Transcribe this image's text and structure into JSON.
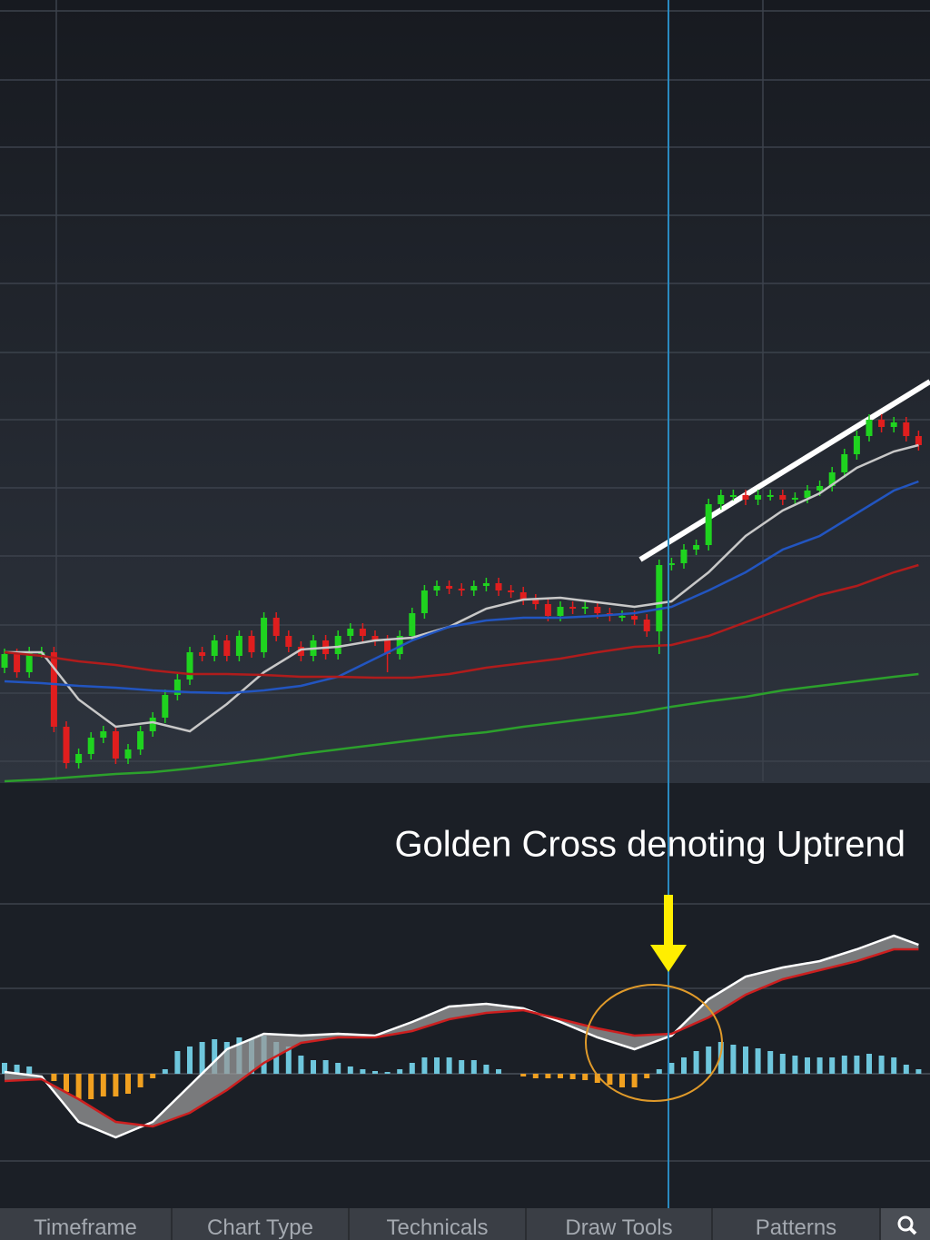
{
  "chart_data": [
    {
      "type": "candlestick",
      "ylim": [
        0,
        860
      ],
      "up_color": "#1fd31f",
      "down_color": "#e01e1e",
      "open": [
        125,
        140,
        120,
        142,
        142,
        60,
        20,
        30,
        48,
        55,
        25,
        35,
        55,
        70,
        95,
        112,
        142,
        138,
        155,
        138,
        160,
        142,
        180,
        160,
        148,
        138,
        155,
        140,
        160,
        168,
        160,
        155,
        140,
        160,
        185,
        210,
        215,
        212,
        210,
        215,
        218,
        210,
        208,
        200,
        195,
        182,
        192,
        190,
        192,
        185,
        182,
        182,
        178,
        165,
        238,
        240,
        255,
        260,
        305,
        315,
        315,
        310,
        315,
        315,
        310,
        312,
        320,
        325,
        340,
        360,
        380,
        398,
        390,
        395,
        380
      ],
      "high": [
        146,
        146,
        148,
        148,
        148,
        66,
        36,
        54,
        61,
        61,
        41,
        61,
        76,
        101,
        118,
        148,
        148,
        161,
        161,
        166,
        166,
        186,
        186,
        166,
        154,
        161,
        161,
        166,
        174,
        174,
        166,
        161,
        166,
        191,
        216,
        221,
        221,
        218,
        221,
        224,
        224,
        216,
        214,
        206,
        201,
        198,
        198,
        198,
        198,
        191,
        188,
        188,
        184,
        244,
        246,
        261,
        266,
        311,
        321,
        321,
        321,
        321,
        321,
        321,
        318,
        326,
        331,
        346,
        366,
        386,
        404,
        404,
        401,
        401,
        386
      ],
      "low": [
        119,
        114,
        114,
        136,
        54,
        14,
        14,
        24,
        42,
        19,
        19,
        29,
        49,
        64,
        89,
        106,
        132,
        132,
        132,
        132,
        136,
        136,
        154,
        142,
        132,
        132,
        134,
        134,
        154,
        154,
        149,
        120,
        134,
        154,
        179,
        204,
        206,
        204,
        204,
        209,
        204,
        202,
        194,
        189,
        176,
        176,
        184,
        184,
        179,
        176,
        176,
        172,
        159,
        140,
        232,
        234,
        249,
        254,
        299,
        309,
        304,
        304,
        309,
        304,
        304,
        306,
        314,
        319,
        334,
        354,
        374,
        384,
        384,
        374,
        364
      ],
      "close": [
        140,
        120,
        142,
        142,
        60,
        20,
        30,
        48,
        55,
        25,
        35,
        55,
        70,
        95,
        112,
        142,
        138,
        155,
        138,
        160,
        142,
        180,
        160,
        148,
        138,
        155,
        140,
        160,
        168,
        160,
        155,
        140,
        160,
        185,
        210,
        215,
        212,
        210,
        215,
        218,
        210,
        208,
        200,
        195,
        182,
        192,
        190,
        192,
        185,
        182,
        182,
        178,
        165,
        238,
        240,
        255,
        260,
        305,
        315,
        315,
        310,
        315,
        315,
        310,
        312,
        320,
        325,
        340,
        360,
        380,
        398,
        390,
        395,
        380,
        370
      ],
      "series": [
        {
          "color": "#c8c8c8",
          "x": [
            0,
            3,
            6,
            9,
            12,
            15,
            18,
            21,
            24,
            27,
            30,
            33,
            36,
            39,
            42,
            45,
            48,
            51,
            54,
            57,
            60,
            63,
            66,
            69,
            72,
            74
          ],
          "values": [
            142,
            142,
            90,
            60,
            65,
            55,
            85,
            120,
            145,
            148,
            155,
            158,
            170,
            190,
            200,
            202,
            197,
            192,
            198,
            230,
            270,
            298,
            317,
            345,
            363,
            370
          ]
        },
        {
          "color": "#2255c0",
          "x": [
            0,
            3,
            6,
            9,
            12,
            15,
            18,
            21,
            24,
            27,
            30,
            33,
            36,
            39,
            42,
            45,
            48,
            51,
            54,
            57,
            60,
            63,
            66,
            69,
            72,
            74
          ],
          "values": [
            110,
            108,
            105,
            103,
            100,
            98,
            97,
            100,
            105,
            115,
            135,
            155,
            170,
            177,
            180,
            180,
            182,
            185,
            192,
            210,
            230,
            255,
            270,
            295,
            320,
            330
          ]
        },
        {
          "color": "#b01c1c",
          "x": [
            0,
            3,
            6,
            9,
            12,
            15,
            18,
            21,
            24,
            27,
            30,
            33,
            36,
            39,
            42,
            45,
            48,
            51,
            54,
            57,
            60,
            63,
            66,
            69,
            72,
            74
          ],
          "values": [
            142,
            138,
            132,
            128,
            122,
            118,
            118,
            117,
            115,
            115,
            114,
            114,
            118,
            125,
            130,
            135,
            142,
            148,
            150,
            160,
            175,
            190,
            205,
            215,
            230,
            238
          ]
        },
        {
          "color": "#2ca02c",
          "x": [
            0,
            3,
            6,
            9,
            12,
            15,
            18,
            21,
            24,
            27,
            30,
            33,
            36,
            39,
            42,
            45,
            48,
            51,
            54,
            57,
            60,
            63,
            66,
            69,
            72,
            74
          ],
          "values": [
            0,
            2,
            5,
            8,
            10,
            14,
            19,
            24,
            30,
            35,
            40,
            45,
            50,
            54,
            60,
            65,
            70,
            75,
            82,
            88,
            93,
            100,
            105,
            110,
            115,
            118
          ]
        }
      ]
    },
    {
      "type": "macd",
      "ylim": [
        -148,
        302
      ],
      "annotation": "Golden Cross denoting Uptrend",
      "pos_color": "#6ec6dc",
      "neg_color": "#f0a020",
      "histogram": [
        12,
        10,
        8,
        0,
        -8,
        -20,
        -28,
        -28,
        -25,
        -25,
        -22,
        -15,
        -5,
        5,
        25,
        30,
        35,
        38,
        35,
        40,
        38,
        42,
        35,
        30,
        20,
        15,
        15,
        12,
        8,
        5,
        3,
        2,
        5,
        12,
        18,
        18,
        18,
        15,
        15,
        10,
        5,
        0,
        -3,
        -5,
        -5,
        -5,
        -6,
        -7,
        -10,
        -12,
        -15,
        -15,
        -5,
        5,
        12,
        18,
        25,
        30,
        35,
        32,
        30,
        28,
        25,
        22,
        20,
        18,
        18,
        18,
        20,
        20,
        22,
        20,
        18,
        10,
        5
      ],
      "series": [
        {
          "color": "#ffffff",
          "x": [
            0,
            3,
            6,
            9,
            12,
            15,
            18,
            21,
            24,
            27,
            30,
            33,
            36,
            39,
            42,
            45,
            48,
            51,
            54,
            57,
            60,
            63,
            66,
            69,
            72,
            74
          ],
          "values": [
            2,
            -3,
            -53,
            -70,
            -53,
            -13,
            27,
            44,
            42,
            44,
            42,
            57,
            74,
            77,
            72,
            57,
            40,
            27,
            42,
            82,
            107,
            117,
            124,
            137,
            152,
            142
          ]
        },
        {
          "color": "#cc1f1f",
          "x": [
            0,
            3,
            6,
            9,
            12,
            15,
            18,
            21,
            24,
            27,
            30,
            33,
            36,
            39,
            42,
            45,
            48,
            51,
            54,
            57,
            60,
            63,
            66,
            69,
            72,
            74
          ],
          "values": [
            -8,
            -6,
            -28,
            -53,
            -58,
            -43,
            -18,
            12,
            34,
            40,
            40,
            47,
            60,
            67,
            70,
            60,
            50,
            42,
            44,
            62,
            87,
            104,
            114,
            124,
            137,
            137
          ]
        }
      ]
    }
  ],
  "toolbar": {
    "tabs": [
      "Timeframe",
      "Chart Type",
      "Technicals",
      "Draw Tools",
      "Patterns"
    ]
  }
}
